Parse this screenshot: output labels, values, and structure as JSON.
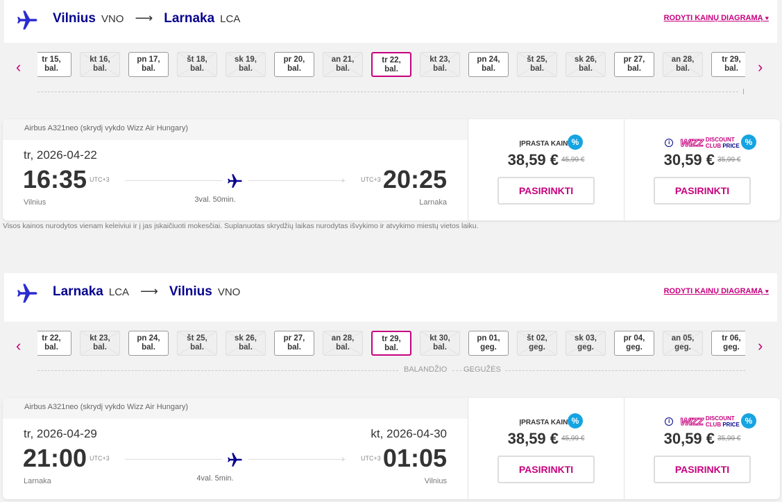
{
  "colors": {
    "brand_navy": "#06038d",
    "brand_magenta": "#c6007e",
    "discount_badge": "#15a4e1"
  },
  "chart_link": "RODYTI KAINŲ DIAGRAMĄ",
  "note": "Visos kainos nurodytos vienam keleiviui ir į jas įskaičiuoti mokesčiai. Suplanuotas skrydžių laikas nurodytas išvykimo ir atvykimo miestų vietos laiku.",
  "legs": [
    {
      "origin": "Vilnius",
      "origin_code": "VNO",
      "destination": "Larnaka",
      "destination_code": "LCA",
      "dates": [
        {
          "d": "tr 15,",
          "m": "bal.",
          "available": true
        },
        {
          "d": "kt 16,",
          "m": "bal.",
          "available": false
        },
        {
          "d": "pn 17,",
          "m": "bal.",
          "available": true
        },
        {
          "d": "št 18,",
          "m": "bal.",
          "available": false
        },
        {
          "d": "sk 19,",
          "m": "bal.",
          "available": false
        },
        {
          "d": "pr 20,",
          "m": "bal.",
          "available": true
        },
        {
          "d": "an 21,",
          "m": "bal.",
          "available": false
        },
        {
          "d": "tr 22,",
          "m": "bal.",
          "available": true,
          "selected": true
        },
        {
          "d": "kt 23,",
          "m": "bal.",
          "available": false
        },
        {
          "d": "pn 24,",
          "m": "bal.",
          "available": true
        },
        {
          "d": "št 25,",
          "m": "bal.",
          "available": false
        },
        {
          "d": "sk 26,",
          "m": "bal.",
          "available": false
        },
        {
          "d": "pr 27,",
          "m": "bal.",
          "available": true
        },
        {
          "d": "an 28,",
          "m": "bal.",
          "available": false
        },
        {
          "d": "tr 29,",
          "m": "bal.",
          "available": true
        }
      ],
      "months": [],
      "flight": {
        "aircraft": "Airbus A321neo (skrydį vykdo Wizz Air Hungary)",
        "dep_date": "tr, 2026-04-22",
        "arr_date": "",
        "dep_time": "16:35",
        "arr_time": "20:25",
        "dep_utc": "UTC+3",
        "arr_utc": "UTC+3",
        "dep_city": "Vilnius",
        "arr_city": "Larnaka",
        "duration": "3val. 50min."
      },
      "prices": {
        "regular_label": "ĮPRASTA KAINA",
        "regular": "38,59 €",
        "regular_old": "45,99 €",
        "club_logo": "WIZZ",
        "club_line1": "DISCOUNT",
        "club_line2a": "CLUB",
        "club_line2b": "PRICE",
        "club": "30,59 €",
        "club_old": "35,99 €",
        "discount_icon": "%",
        "select": "PASIRINKTI"
      }
    },
    {
      "origin": "Larnaka",
      "origin_code": "LCA",
      "destination": "Vilnius",
      "destination_code": "VNO",
      "dates": [
        {
          "d": "tr 22,",
          "m": "bal.",
          "available": true
        },
        {
          "d": "kt 23,",
          "m": "bal.",
          "available": false
        },
        {
          "d": "pn 24,",
          "m": "bal.",
          "available": true
        },
        {
          "d": "št 25,",
          "m": "bal.",
          "available": false
        },
        {
          "d": "sk 26,",
          "m": "bal.",
          "available": false
        },
        {
          "d": "pr 27,",
          "m": "bal.",
          "available": true
        },
        {
          "d": "an 28,",
          "m": "bal.",
          "available": false
        },
        {
          "d": "tr 29,",
          "m": "bal.",
          "available": true,
          "selected": true
        },
        {
          "d": "kt 30,",
          "m": "bal.",
          "available": false
        },
        {
          "d": "pn 01,",
          "m": "geg.",
          "available": true
        },
        {
          "d": "št 02,",
          "m": "geg.",
          "available": false
        },
        {
          "d": "sk 03,",
          "m": "geg.",
          "available": false
        },
        {
          "d": "pr 04,",
          "m": "geg.",
          "available": true
        },
        {
          "d": "an 05,",
          "m": "geg.",
          "available": false
        },
        {
          "d": "tr 06,",
          "m": "geg.",
          "available": true
        }
      ],
      "months": [
        "BALANDŽIO",
        "GEGUŽĖS"
      ],
      "flight": {
        "aircraft": "Airbus A321neo (skrydį vykdo Wizz Air Hungary)",
        "dep_date": "tr, 2026-04-29",
        "arr_date": "kt, 2026-04-30",
        "dep_time": "21:00",
        "arr_time": "01:05",
        "dep_utc": "UTC+3",
        "arr_utc": "UTC+3",
        "dep_city": "Larnaka",
        "arr_city": "Vilnius",
        "duration": "4val. 5min."
      },
      "prices": {
        "regular_label": "ĮPRASTA KAINA",
        "regular": "38,59 €",
        "regular_old": "45,99 €",
        "club_logo": "WIZZ",
        "club_line1": "DISCOUNT",
        "club_line2a": "CLUB",
        "club_line2b": "PRICE",
        "club": "30,59 €",
        "club_old": "35,99 €",
        "discount_icon": "%",
        "select": "PASIRINKTI"
      }
    }
  ]
}
